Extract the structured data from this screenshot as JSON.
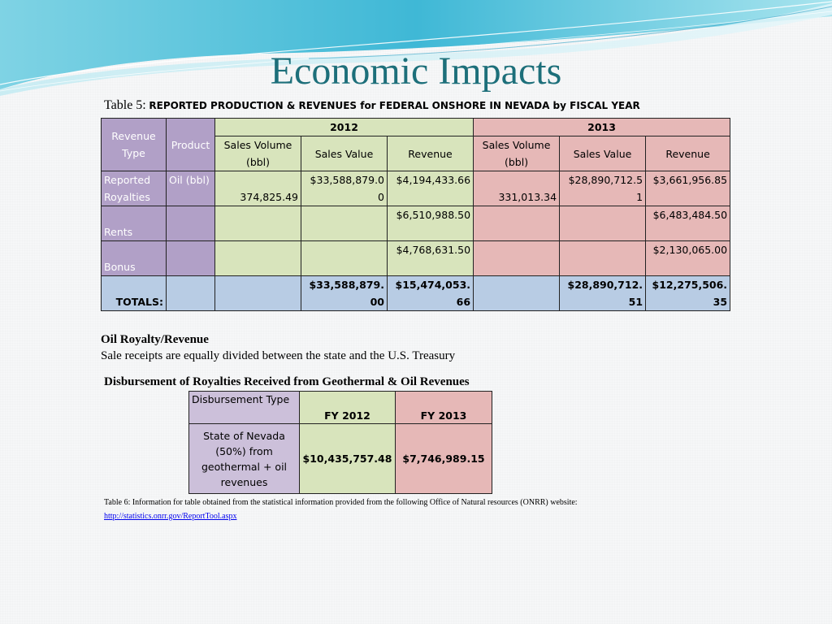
{
  "title": "Economic Impacts",
  "table5": {
    "caption_lead": "Table 5:",
    "caption_rest": "REPORTED PRODUCTION & REVENUES for FEDERAL ONSHORE IN NEVADA by FISCAL YEAR",
    "col_revenue_type": "Revenue Type",
    "col_product": "Product",
    "year_2012": "2012",
    "year_2013": "2013",
    "col_sales_volume": "Sales Volume (bbl)",
    "col_sales_value": "Sales Value",
    "col_revenue": "Revenue",
    "rows": [
      {
        "type": "Reported Royalties",
        "product": "Oil (bbl)",
        "sv2012": "374,825.49",
        "val2012": "$33,588,879.00",
        "rev2012": "$4,194,433.66",
        "sv2013": "331,013.34",
        "val2013": "$28,890,712.51",
        "rev2013": "$3,661,956.85"
      },
      {
        "type": "Rents",
        "product": "",
        "sv2012": "",
        "val2012": "",
        "rev2012": "$6,510,988.50",
        "sv2013": "",
        "val2013": "",
        "rev2013": "$6,483,484.50"
      },
      {
        "type": "Bonus",
        "product": "",
        "sv2012": "",
        "val2012": "",
        "rev2012": "$4,768,631.50",
        "sv2013": "",
        "val2013": "",
        "rev2013": "$2,130,065.00"
      }
    ],
    "totals": {
      "label": "TOTALS:",
      "val2012": "$33,588,879.00",
      "rev2012": "$15,474,053.66",
      "val2013": "$28,890,712.51",
      "rev2013": "$12,275,506.35"
    }
  },
  "oil_royalty": {
    "heading": "Oil Royalty/Revenue",
    "text": "Sale receipts are equally divided between the state and the U.S. Treasury"
  },
  "disbursement": {
    "heading": "Disbursement of Royalties Received from Geothermal & Oil Revenues",
    "col_type": "Disbursement Type",
    "col_fy2012": "FY 2012",
    "col_fy2013": "FY 2013",
    "row_label": "State of Nevada (50%) from geothermal + oil revenues",
    "fy2012_value": "$10,435,757.48",
    "fy2013_value": "$7,746,989.15"
  },
  "footnote": "Table 6: Information for table obtained from the statistical information provided from the following Office of Natural resources (ONRR) website:",
  "link": "http://statistics.onrr.gov/ReportTool.aspx",
  "colors": {
    "title": "#1d6f7a",
    "header_purple": "#b1a0c7",
    "col_green": "#d8e4bc",
    "col_pink": "#e6b8b7",
    "totals_blue": "#b8cce4",
    "swoosh": "#5bc8dc"
  }
}
